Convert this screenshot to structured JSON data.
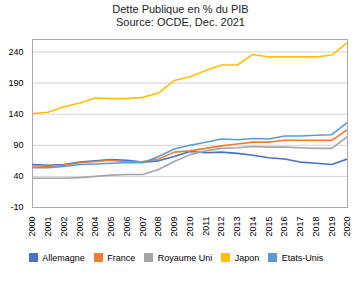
{
  "chart_data": {
    "type": "line",
    "title": "Dette Publique en % du PIB\nSource: OCDE, Dec. 2021",
    "x": [
      2000,
      2001,
      2002,
      2003,
      2004,
      2005,
      2006,
      2007,
      2008,
      2009,
      2010,
      2011,
      2012,
      2013,
      2014,
      2015,
      2016,
      2017,
      2018,
      2019,
      2020
    ],
    "series": [
      {
        "name": "Allemagne",
        "color": "#4472C4",
        "values": [
          59,
          58,
          59,
          63,
          65,
          67,
          66,
          63,
          65,
          72,
          80,
          78,
          79,
          77,
          74,
          70,
          68,
          63,
          61,
          59,
          68
        ]
      },
      {
        "name": "France",
        "color": "#ED7D31",
        "values": [
          57,
          56,
          58,
          62,
          64,
          66,
          63,
          64,
          68,
          79,
          81,
          85,
          89,
          92,
          95,
          95,
          98,
          98,
          98,
          98,
          115
        ]
      },
      {
        "name": "Royaume Uni",
        "color": "#A5A5A5",
        "values": [
          37,
          37,
          37,
          38,
          40,
          42,
          43,
          43,
          51,
          64,
          75,
          81,
          85,
          86,
          88,
          87,
          87,
          86,
          85,
          85,
          104
        ]
      },
      {
        "name": "Japon",
        "color": "#FFC000",
        "values": [
          141,
          143,
          152,
          158,
          166,
          165,
          165,
          167,
          174,
          194,
          200,
          210,
          219,
          219,
          236,
          232,
          232,
          232,
          232,
          235,
          255
        ]
      },
      {
        "name": "Etats-Unis",
        "color": "#5B9BD5",
        "values": [
          54,
          54,
          56,
          59,
          60,
          61,
          62,
          62,
          72,
          84,
          90,
          95,
          100,
          99,
          101,
          100,
          105,
          105,
          106,
          107,
          127
        ]
      }
    ],
    "xlim": [
      2000,
      2020
    ],
    "xticks": [
      2000,
      2001,
      2002,
      2003,
      2004,
      2005,
      2006,
      2007,
      2008,
      2009,
      2010,
      2011,
      2012,
      2013,
      2014,
      2015,
      2016,
      2017,
      2018,
      2019,
      2020
    ],
    "ylim": [
      -10,
      260
    ],
    "yticks": [
      -10,
      40,
      90,
      140,
      190,
      240
    ],
    "grid": true,
    "legend": "bottom"
  }
}
